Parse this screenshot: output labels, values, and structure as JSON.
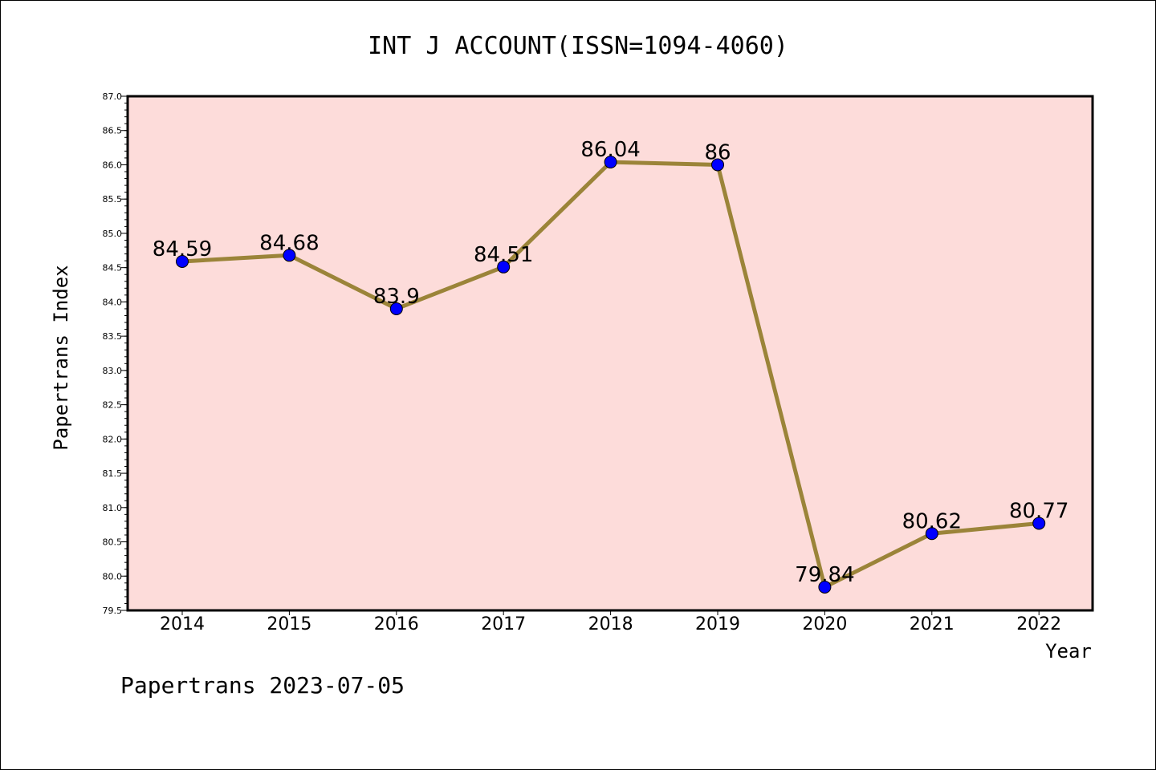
{
  "chart_data": {
    "type": "line",
    "title": "INT J ACCOUNT(ISSN=1094-4060)",
    "xlabel": "Year",
    "ylabel": "Papertrans Index",
    "categories": [
      "2014",
      "2015",
      "2016",
      "2017",
      "2018",
      "2019",
      "2020",
      "2021",
      "2022"
    ],
    "series": [
      {
        "values": [
          84.59,
          84.68,
          83.9,
          84.51,
          86.04,
          86,
          79.84,
          80.62,
          80.77
        ],
        "data_labels": [
          "84.59",
          "84.68",
          "83.9",
          "84.51",
          "86.04",
          "86",
          "79.84",
          "80.62",
          "80.77"
        ],
        "line_color": "#9b8439",
        "marker_color": "#0000ff"
      }
    ],
    "ylim": [
      79.5,
      87.0
    ],
    "yticks": [
      "79.5",
      "80.0",
      "80.5",
      "81.0",
      "81.5",
      "82.0",
      "82.5",
      "83.0",
      "83.5",
      "84.0",
      "84.5",
      "85.0",
      "85.5",
      "86.0",
      "86.5",
      "87.0"
    ],
    "grid": false,
    "plot_background": "#fddcda",
    "footer": "Papertrans 2023-07-05"
  }
}
